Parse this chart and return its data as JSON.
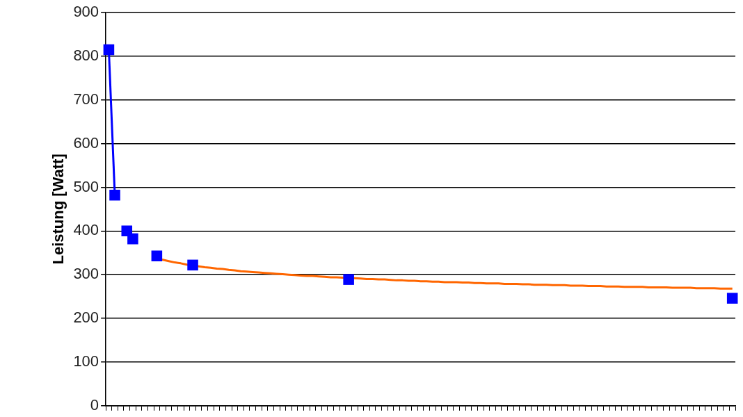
{
  "chart_data": {
    "type": "line",
    "ylabel": "Leistung [Watt]",
    "categories": [
      null,
      null,
      null,
      null,
      null,
      null,
      null,
      null,
      null,
      null,
      null,
      null,
      null,
      null,
      null,
      null,
      null,
      null,
      null,
      null,
      null,
      null,
      null,
      null,
      null,
      null,
      null,
      null,
      null,
      null,
      null,
      null,
      null,
      null,
      null,
      null,
      null,
      null,
      null,
      null,
      null,
      null,
      null,
      null,
      null,
      null,
      null,
      null,
      null,
      null,
      null,
      null,
      null,
      null,
      null,
      null,
      null,
      null,
      null,
      null,
      null,
      null,
      null,
      null,
      null,
      null,
      null,
      null,
      null,
      null,
      null,
      null,
      null,
      null,
      null,
      null,
      null,
      null,
      null,
      null,
      null,
      null,
      null,
      null,
      null,
      null,
      null,
      null,
      null,
      null,
      null,
      null,
      null,
      null,
      null,
      null,
      null,
      null,
      null,
      null,
      null,
      null,
      null,
      null,
      null
    ],
    "ylim": [
      0,
      900
    ],
    "yticks": [
      0,
      100,
      200,
      300,
      400,
      500,
      600,
      700,
      800,
      900
    ],
    "grid": "y",
    "legend": false,
    "tick_labels": "y",
    "marker": "square",
    "line_style": "solid",
    "series": [
      {
        "color": "#0000ff",
        "marker": "none",
        "values": [
          815,
          482,
          null,
          null,
          null,
          null,
          null,
          null,
          null,
          null,
          null,
          null,
          null,
          null,
          null,
          null,
          null,
          null,
          null,
          null,
          null,
          null,
          null,
          null,
          null,
          null,
          null,
          null,
          null,
          null,
          null,
          null,
          null,
          null,
          null,
          null,
          null,
          null,
          null,
          null,
          null,
          null,
          null,
          null,
          null,
          null,
          null,
          null,
          null,
          null,
          null,
          null,
          null,
          null,
          null,
          null,
          null,
          null,
          null,
          null,
          null,
          null,
          null,
          null,
          null,
          null,
          null,
          null,
          null,
          null,
          null,
          null,
          null,
          null,
          null,
          null,
          null,
          null,
          null,
          null,
          null,
          null,
          null,
          null,
          null,
          null,
          null,
          null,
          null,
          null,
          null,
          null,
          null,
          null,
          null,
          null,
          null,
          null,
          null,
          null,
          null,
          null,
          null,
          null,
          null
        ]
      },
      {
        "color": "#ff6600",
        "marker": "none",
        "values": [
          null,
          null,
          null,
          null,
          null,
          null,
          null,
          null,
          338,
          334,
          331,
          328,
          326,
          323,
          321,
          319,
          317,
          316,
          314,
          313,
          311,
          310,
          308,
          307,
          306,
          305,
          304,
          303,
          302,
          301,
          300,
          299,
          298,
          297,
          297,
          296,
          295,
          294,
          294,
          293,
          292,
          292,
          291,
          290,
          290,
          289,
          289,
          288,
          287,
          287,
          286,
          286,
          285,
          285,
          284,
          284,
          283,
          283,
          283,
          282,
          282,
          281,
          281,
          280,
          280,
          280,
          279,
          279,
          279,
          278,
          278,
          277,
          277,
          277,
          276,
          276,
          276,
          275,
          275,
          275,
          274,
          274,
          274,
          273,
          273,
          273,
          272,
          272,
          272,
          272,
          271,
          271,
          271,
          271,
          270,
          270,
          270,
          270,
          269,
          269,
          269,
          269,
          268,
          268,
          268
        ]
      },
      {
        "type": "scatter",
        "color": "#0000ff",
        "values": [
          815,
          482,
          null,
          400,
          382,
          null,
          null,
          null,
          343,
          null,
          null,
          null,
          null,
          null,
          322,
          null,
          null,
          null,
          null,
          null,
          null,
          null,
          null,
          null,
          null,
          null,
          null,
          null,
          null,
          null,
          null,
          null,
          null,
          null,
          null,
          null,
          null,
          null,
          null,
          null,
          289,
          null,
          null,
          null,
          null,
          null,
          null,
          null,
          null,
          null,
          null,
          null,
          null,
          null,
          null,
          null,
          null,
          null,
          null,
          null,
          null,
          null,
          null,
          null,
          null,
          null,
          null,
          null,
          null,
          null,
          null,
          null,
          null,
          null,
          null,
          null,
          null,
          null,
          null,
          null,
          null,
          null,
          null,
          null,
          null,
          null,
          null,
          null,
          null,
          null,
          null,
          null,
          null,
          null,
          null,
          null,
          null,
          null,
          null,
          null,
          null,
          null,
          null,
          null,
          246
        ]
      }
    ]
  }
}
